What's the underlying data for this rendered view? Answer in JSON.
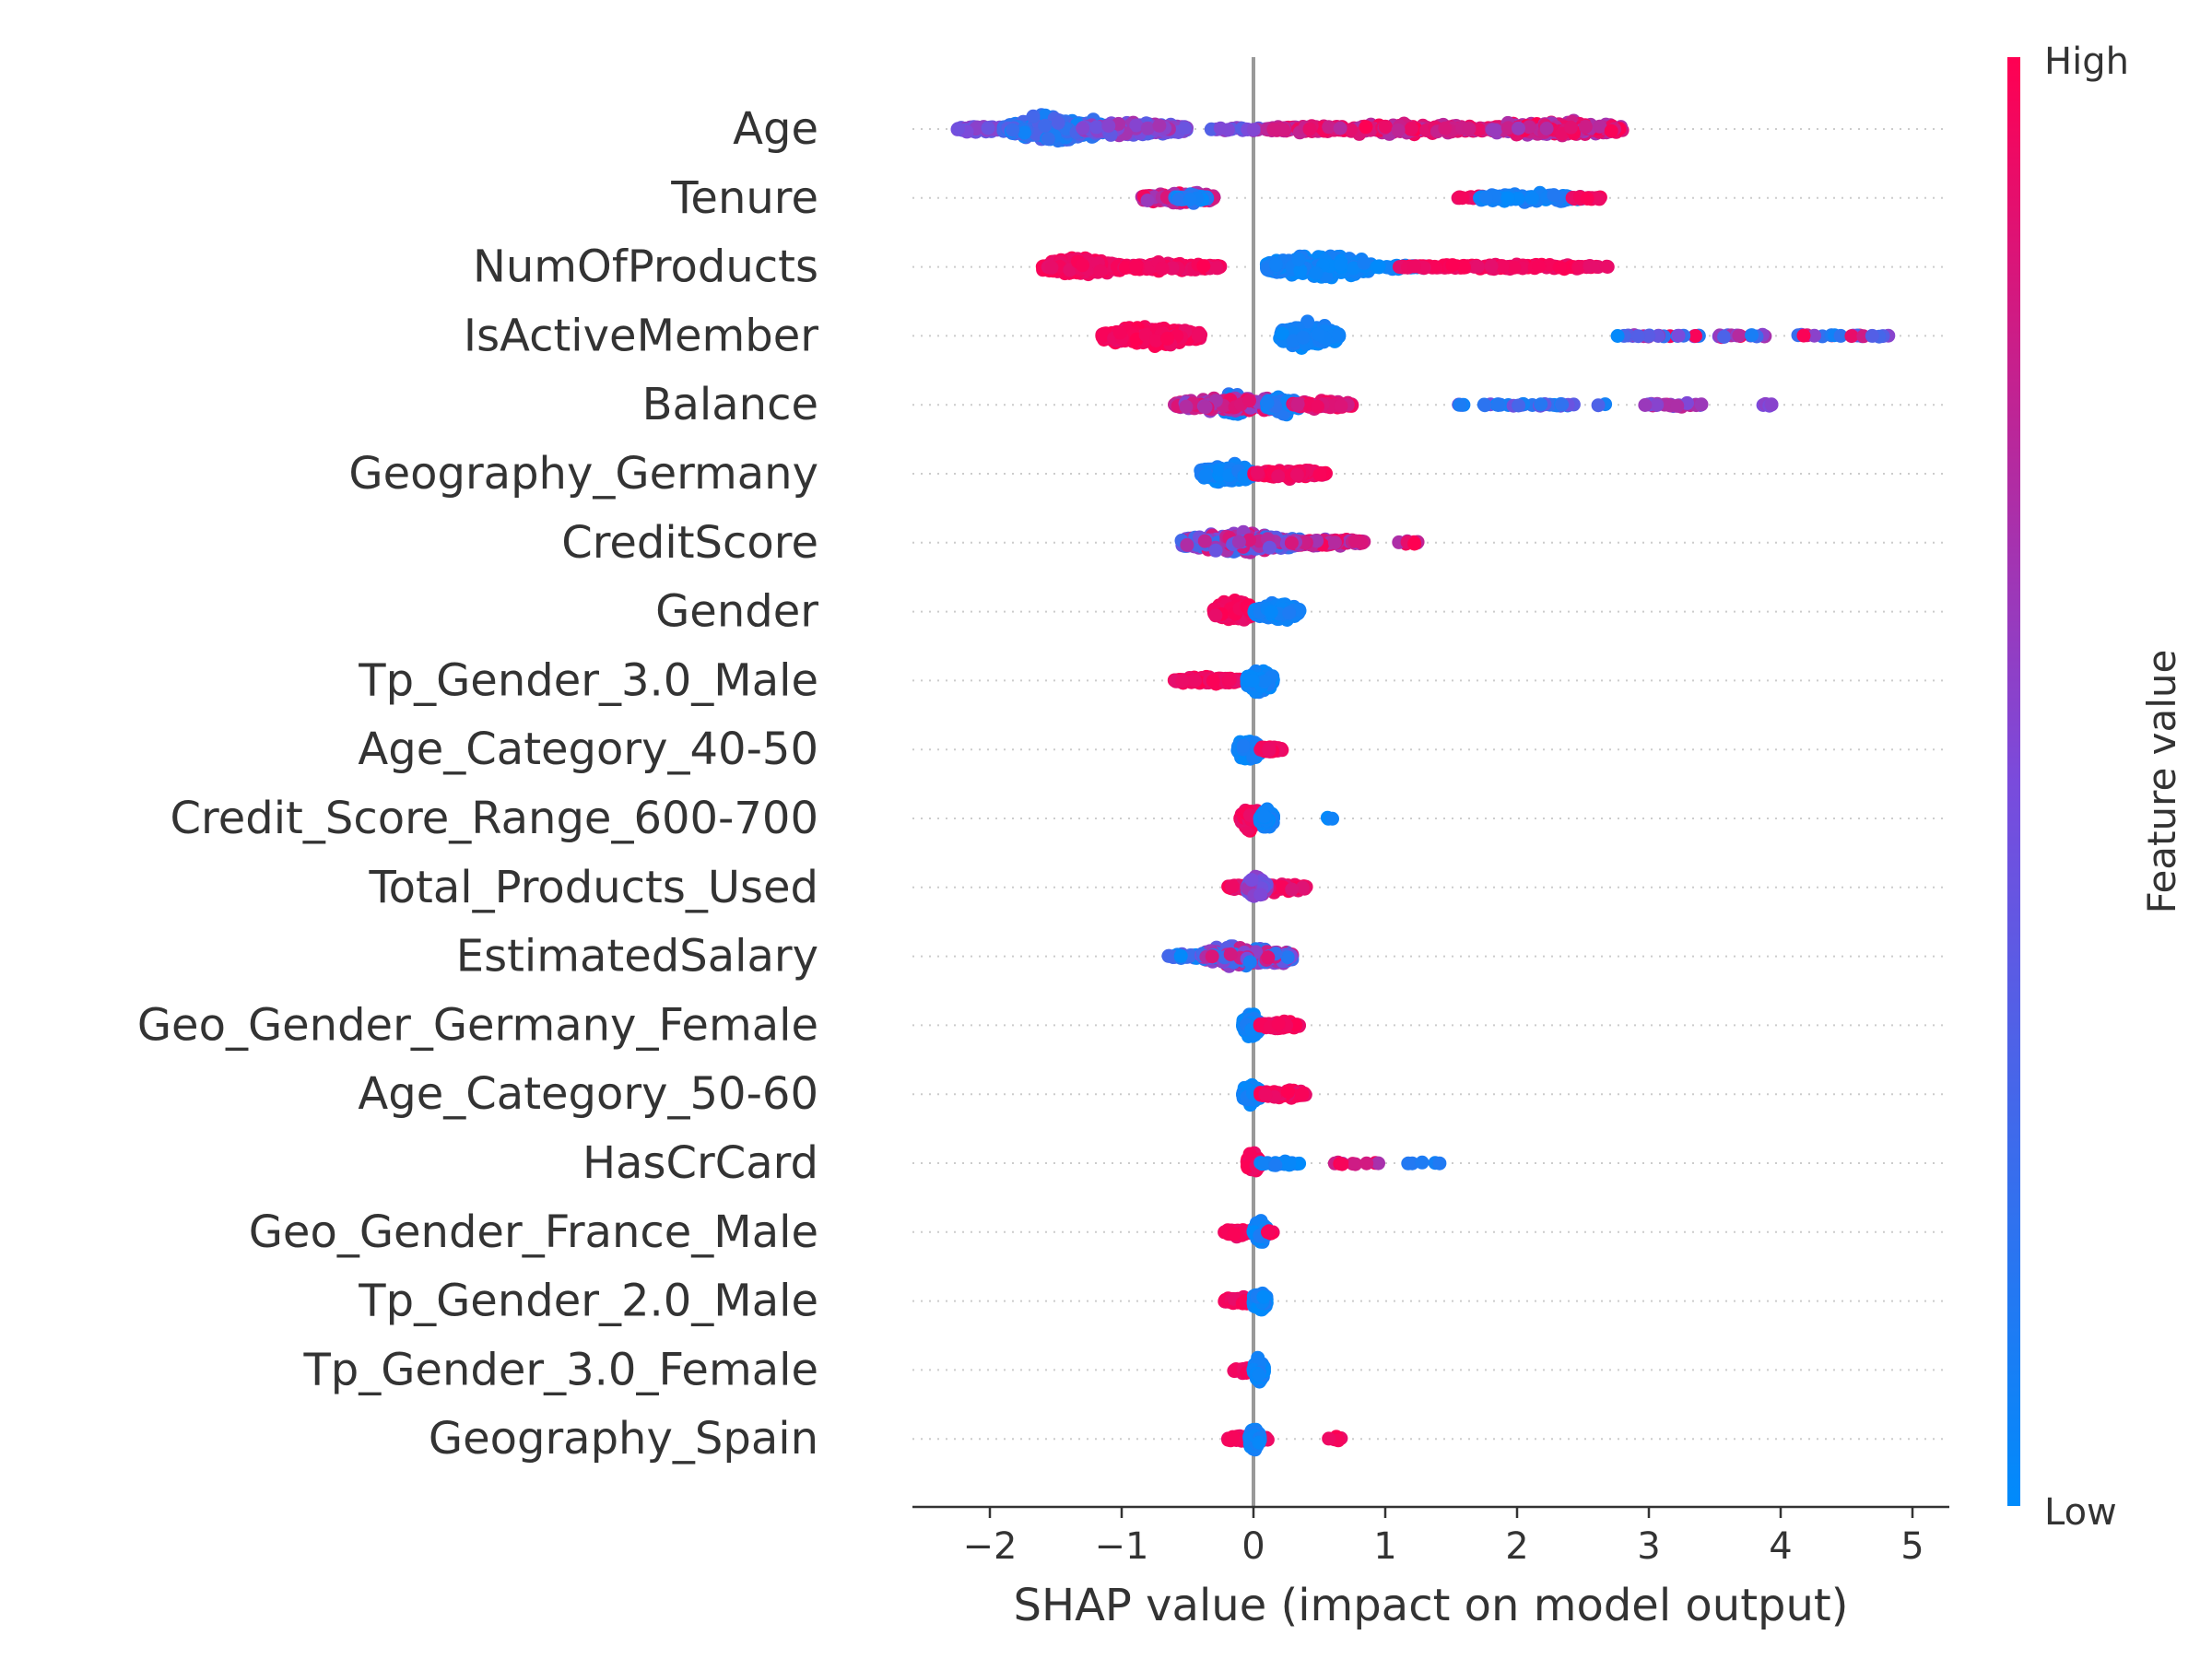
{
  "chart_data": {
    "type": "scatter",
    "subtype": "shap-beeswarm-summary",
    "xlabel": "SHAP value (impact on model output)",
    "xlim": [
      -2.6,
      5.3
    ],
    "xticks": [
      -2,
      -1,
      0,
      1,
      2,
      3,
      4,
      5
    ],
    "xtick_labels": [
      "−2",
      "−1",
      "0",
      "1",
      "2",
      "3",
      "4",
      "5"
    ],
    "grid": false,
    "colorbar": {
      "title": "Feature value",
      "high_label": "High",
      "low_label": "Low",
      "high_color": "#ff0052",
      "low_color": "#008bfb"
    },
    "features": [
      {
        "name": "Age",
        "clusters": [
          {
            "x": [
              -2.25,
              -1.9
            ],
            "h": 0.3,
            "n": 60,
            "v": [
              0.4,
              0.6
            ]
          },
          {
            "x": [
              -1.9,
              -1.1
            ],
            "h": 0.9,
            "n": 420,
            "v": [
              0.05,
              0.35
            ]
          },
          {
            "x": [
              -1.3,
              -0.5
            ],
            "h": 0.55,
            "n": 250,
            "v": [
              0.35,
              0.7
            ]
          },
          {
            "x": [
              -0.35,
              0.1
            ],
            "h": 0.15,
            "n": 20,
            "v": [
              0.3,
              0.7
            ]
          },
          {
            "x": [
              0.1,
              2.0
            ],
            "h": 0.35,
            "n": 320,
            "v": [
              0.7,
              1.0
            ]
          },
          {
            "x": [
              1.8,
              2.8
            ],
            "h": 0.6,
            "n": 250,
            "v": [
              0.6,
              1.0
            ]
          }
        ]
      },
      {
        "name": "Tenure",
        "clusters": [
          {
            "x": [
              -0.85,
              -0.3
            ],
            "h": 0.55,
            "n": 140,
            "v": [
              0.6,
              1.0
            ]
          },
          {
            "x": [
              -0.6,
              -0.35
            ],
            "h": 0.35,
            "n": 50,
            "v": [
              0.0,
              0.2
            ]
          },
          {
            "x": [
              1.55,
              2.0
            ],
            "h": 0.15,
            "n": 30,
            "v": [
              0.9,
              1.0
            ]
          },
          {
            "x": [
              1.7,
              2.5
            ],
            "h": 0.35,
            "n": 120,
            "v": [
              0.0,
              0.15
            ]
          },
          {
            "x": [
              2.4,
              2.7
            ],
            "h": 0.15,
            "n": 15,
            "v": [
              0.9,
              1.0
            ]
          }
        ]
      },
      {
        "name": "NumOfProducts",
        "clusters": [
          {
            "x": [
              -1.6,
              -1.0
            ],
            "h": 0.65,
            "n": 300,
            "v": [
              0.9,
              1.0
            ]
          },
          {
            "x": [
              -1.0,
              -0.25
            ],
            "h": 0.3,
            "n": 120,
            "v": [
              0.9,
              1.0
            ]
          },
          {
            "x": [
              0.1,
              0.9
            ],
            "h": 0.9,
            "n": 420,
            "v": [
              0.0,
              0.12
            ]
          },
          {
            "x": [
              0.9,
              1.3
            ],
            "h": 0.2,
            "n": 30,
            "v": [
              0.0,
              0.1
            ]
          },
          {
            "x": [
              1.1,
              2.7
            ],
            "h": 0.2,
            "n": 120,
            "v": [
              0.9,
              1.0
            ]
          }
        ]
      },
      {
        "name": "IsActiveMember",
        "clusters": [
          {
            "x": [
              -1.15,
              -0.4
            ],
            "h": 0.75,
            "n": 260,
            "v": [
              0.9,
              1.0
            ]
          },
          {
            "x": [
              0.2,
              0.65
            ],
            "h": 0.9,
            "n": 260,
            "v": [
              0.0,
              0.12
            ]
          },
          {
            "x": [
              2.75,
              4.9
            ],
            "h": 0.12,
            "n": 60,
            "v": [
              0.0,
              1.0
            ]
          }
        ]
      },
      {
        "name": "Balance",
        "clusters": [
          {
            "x": [
              -0.25,
              -0.05
            ],
            "h": 0.9,
            "n": 120,
            "v": [
              0.0,
              0.2
            ]
          },
          {
            "x": [
              -0.6,
              0.3
            ],
            "h": 0.55,
            "n": 220,
            "v": [
              0.55,
              0.95
            ]
          },
          {
            "x": [
              0.1,
              0.35
            ],
            "h": 0.7,
            "n": 80,
            "v": [
              0.0,
              0.2
            ]
          },
          {
            "x": [
              0.3,
              0.75
            ],
            "h": 0.3,
            "n": 90,
            "v": [
              0.8,
              1.0
            ]
          },
          {
            "x": [
              1.55,
              2.7
            ],
            "h": 0.12,
            "n": 35,
            "v": [
              0.0,
              0.5
            ]
          },
          {
            "x": [
              2.95,
              3.4
            ],
            "h": 0.15,
            "n": 25,
            "v": [
              0.4,
              0.8
            ]
          },
          {
            "x": [
              3.85,
              4.0
            ],
            "h": 0.1,
            "n": 6,
            "v": [
              0.3,
              0.6
            ]
          }
        ]
      },
      {
        "name": "Geography_Germany",
        "clusters": [
          {
            "x": [
              -0.4,
              0.0
            ],
            "h": 0.7,
            "n": 200,
            "v": [
              0.0,
              0.12
            ]
          },
          {
            "x": [
              0.0,
              0.55
            ],
            "h": 0.35,
            "n": 120,
            "v": [
              0.9,
              1.0
            ]
          }
        ]
      },
      {
        "name": "CreditScore",
        "clusters": [
          {
            "x": [
              -0.55,
              0.35
            ],
            "h": 0.75,
            "n": 380,
            "v": [
              0.2,
              0.9
            ]
          },
          {
            "x": [
              0.25,
              0.85
            ],
            "h": 0.3,
            "n": 120,
            "v": [
              0.5,
              1.0
            ]
          },
          {
            "x": [
              1.1,
              1.25
            ],
            "h": 0.2,
            "n": 8,
            "v": [
              0.6,
              1.0
            ]
          }
        ]
      },
      {
        "name": "Gender",
        "clusters": [
          {
            "x": [
              -0.3,
              0.0
            ],
            "h": 0.75,
            "n": 220,
            "v": [
              0.9,
              1.0
            ]
          },
          {
            "x": [
              0.0,
              0.35
            ],
            "h": 0.7,
            "n": 180,
            "v": [
              0.0,
              0.12
            ]
          }
        ]
      },
      {
        "name": "Tp_Gender_3.0_Male",
        "clusters": [
          {
            "x": [
              -0.6,
              -0.1
            ],
            "h": 0.3,
            "n": 150,
            "v": [
              0.9,
              1.0
            ]
          },
          {
            "x": [
              -0.05,
              0.15
            ],
            "h": 0.85,
            "n": 160,
            "v": [
              0.0,
              0.12
            ]
          }
        ]
      },
      {
        "name": "Age_Category_40-50",
        "clusters": [
          {
            "x": [
              -0.12,
              0.05
            ],
            "h": 0.85,
            "n": 200,
            "v": [
              0.0,
              0.12
            ]
          },
          {
            "x": [
              0.05,
              0.22
            ],
            "h": 0.3,
            "n": 50,
            "v": [
              0.9,
              1.0
            ]
          }
        ]
      },
      {
        "name": "Credit_Score_Range_600-700",
        "clusters": [
          {
            "x": [
              -0.1,
              0.05
            ],
            "h": 0.85,
            "n": 140,
            "v": [
              0.9,
              1.0
            ]
          },
          {
            "x": [
              0.05,
              0.15
            ],
            "h": 0.85,
            "n": 120,
            "v": [
              0.0,
              0.12
            ]
          },
          {
            "x": [
              0.55,
              0.6
            ],
            "h": 0.1,
            "n": 4,
            "v": [
              0.0,
              0.1
            ]
          }
        ]
      },
      {
        "name": "Total_Products_Used",
        "clusters": [
          {
            "x": [
              -0.2,
              0.4
            ],
            "h": 0.35,
            "n": 150,
            "v": [
              0.85,
              1.0
            ]
          },
          {
            "x": [
              -0.05,
              0.1
            ],
            "h": 0.85,
            "n": 120,
            "v": [
              0.4,
              0.7
            ]
          }
        ]
      },
      {
        "name": "EstimatedSalary",
        "clusters": [
          {
            "x": [
              -0.65,
              -0.3
            ],
            "h": 0.2,
            "n": 40,
            "v": [
              0.0,
              0.4
            ]
          },
          {
            "x": [
              -0.4,
              0.3
            ],
            "h": 0.8,
            "n": 280,
            "v": [
              0.1,
              0.9
            ]
          }
        ]
      },
      {
        "name": "Geo_Gender_Germany_Female",
        "clusters": [
          {
            "x": [
              -0.08,
              0.05
            ],
            "h": 0.85,
            "n": 200,
            "v": [
              0.0,
              0.12
            ]
          },
          {
            "x": [
              0.05,
              0.35
            ],
            "h": 0.3,
            "n": 80,
            "v": [
              0.9,
              1.0
            ]
          }
        ]
      },
      {
        "name": "Age_Category_50-60",
        "clusters": [
          {
            "x": [
              -0.08,
              0.05
            ],
            "h": 0.85,
            "n": 200,
            "v": [
              0.0,
              0.12
            ]
          },
          {
            "x": [
              0.05,
              0.4
            ],
            "h": 0.3,
            "n": 80,
            "v": [
              0.9,
              1.0
            ]
          }
        ]
      },
      {
        "name": "HasCrCard",
        "clusters": [
          {
            "x": [
              -0.05,
              0.05
            ],
            "h": 0.85,
            "n": 120,
            "v": [
              0.9,
              1.0
            ]
          },
          {
            "x": [
              0.05,
              0.35
            ],
            "h": 0.2,
            "n": 30,
            "v": [
              0.0,
              0.12
            ]
          },
          {
            "x": [
              0.6,
              0.95
            ],
            "h": 0.12,
            "n": 10,
            "v": [
              0.6,
              1.0
            ]
          },
          {
            "x": [
              1.15,
              1.45
            ],
            "h": 0.1,
            "n": 5,
            "v": [
              0.0,
              0.15
            ]
          }
        ]
      },
      {
        "name": "Geo_Gender_France_Male",
        "clusters": [
          {
            "x": [
              -0.22,
              0.0
            ],
            "h": 0.3,
            "n": 60,
            "v": [
              0.9,
              1.0
            ]
          },
          {
            "x": [
              0.0,
              0.1
            ],
            "h": 0.85,
            "n": 140,
            "v": [
              0.0,
              0.12
            ]
          },
          {
            "x": [
              0.1,
              0.15
            ],
            "h": 0.15,
            "n": 5,
            "v": [
              0.9,
              1.0
            ]
          }
        ]
      },
      {
        "name": "Tp_Gender_2.0_Male",
        "clusters": [
          {
            "x": [
              -0.22,
              0.0
            ],
            "h": 0.3,
            "n": 60,
            "v": [
              0.9,
              1.0
            ]
          },
          {
            "x": [
              0.0,
              0.1
            ],
            "h": 0.85,
            "n": 140,
            "v": [
              0.0,
              0.12
            ]
          }
        ]
      },
      {
        "name": "Tp_Gender_3.0_Female",
        "clusters": [
          {
            "x": [
              -0.15,
              0.0
            ],
            "h": 0.3,
            "n": 40,
            "v": [
              0.9,
              1.0
            ]
          },
          {
            "x": [
              0.0,
              0.08
            ],
            "h": 0.85,
            "n": 120,
            "v": [
              0.0,
              0.12
            ]
          }
        ]
      },
      {
        "name": "Geography_Spain",
        "clusters": [
          {
            "x": [
              -0.2,
              0.12
            ],
            "h": 0.3,
            "n": 60,
            "v": [
              0.9,
              1.0
            ]
          },
          {
            "x": [
              -0.03,
              0.05
            ],
            "h": 0.85,
            "n": 140,
            "v": [
              0.0,
              0.12
            ]
          },
          {
            "x": [
              0.55,
              0.7
            ],
            "h": 0.15,
            "n": 6,
            "v": [
              0.9,
              1.0
            ]
          }
        ]
      }
    ]
  }
}
